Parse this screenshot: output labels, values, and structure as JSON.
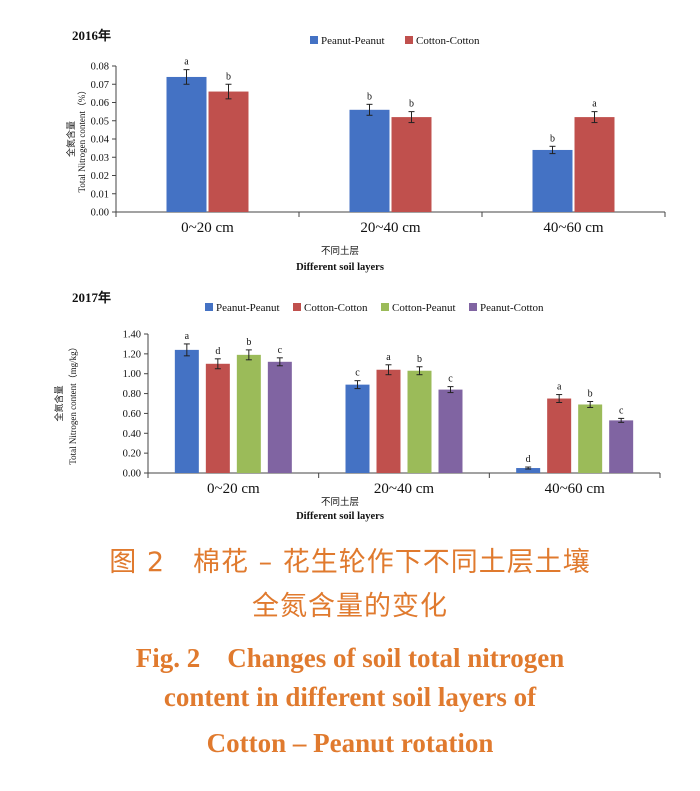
{
  "chart_data": [
    {
      "type": "bar",
      "panel_label": "2016年",
      "categories": [
        "0~20 cm",
        "20~40 cm",
        "40~60 cm"
      ],
      "series": [
        {
          "name": "Peanut-Peanut",
          "color": "#4472C4",
          "values": [
            0.074,
            0.056,
            0.034
          ],
          "errors": [
            0.004,
            0.003,
            0.002
          ],
          "letters": [
            "a",
            "b",
            "b"
          ]
        },
        {
          "name": "Cotton-Cotton",
          "color": "#C0504D",
          "values": [
            0.066,
            0.052,
            0.052
          ],
          "errors": [
            0.004,
            0.003,
            0.003
          ],
          "letters": [
            "b",
            "b",
            "a"
          ]
        }
      ],
      "ylabel_cn": "全氮含量",
      "ylabel_en": "Total Nitrogen content（%）",
      "xlabel_cn": "不同土层",
      "xlabel_en": "Different soil layers",
      "ylim": [
        0,
        0.08
      ],
      "yticks": [
        "0.00",
        "0.01",
        "0.02",
        "0.03",
        "0.04",
        "0.05",
        "0.06",
        "0.07",
        "0.08"
      ],
      "legend_position": "top",
      "grid": false
    },
    {
      "type": "bar",
      "panel_label": "2017年",
      "categories": [
        "0~20 cm",
        "20~40 cm",
        "40~60 cm"
      ],
      "series": [
        {
          "name": "Peanut-Peanut",
          "color": "#4472C4",
          "values": [
            1.24,
            0.89,
            0.05
          ],
          "errors": [
            0.06,
            0.04,
            0.01
          ],
          "letters": [
            "a",
            "c",
            "d"
          ]
        },
        {
          "name": "Cotton-Cotton",
          "color": "#C0504D",
          "values": [
            1.1,
            1.04,
            0.75
          ],
          "errors": [
            0.05,
            0.05,
            0.04
          ],
          "letters": [
            "d",
            "a",
            "a"
          ]
        },
        {
          "name": "Cotton-Peanut",
          "color": "#9BBB59",
          "values": [
            1.19,
            1.03,
            0.69
          ],
          "errors": [
            0.05,
            0.04,
            0.03
          ],
          "letters": [
            "b",
            "b",
            "b"
          ]
        },
        {
          "name": "Peanut-Cotton",
          "color": "#8064A2",
          "values": [
            1.12,
            0.84,
            0.53
          ],
          "errors": [
            0.04,
            0.03,
            0.02
          ],
          "letters": [
            "c",
            "c",
            "c"
          ]
        }
      ],
      "ylabel_cn": "全氮含量",
      "ylabel_en": "Total Nitrogen content（mg/kg）",
      "xlabel_cn": "不同土层",
      "xlabel_en": "Different soil layers",
      "ylim": [
        0,
        1.4
      ],
      "yticks": [
        "0.00",
        "0.20",
        "0.40",
        "0.60",
        "0.80",
        "1.00",
        "1.20",
        "1.40"
      ],
      "legend_position": "top",
      "grid": false
    }
  ],
  "caption": {
    "cn_line1": "图 2　棉花 – 花生轮作下不同土层土壤",
    "cn_line2": "全氮含量的变化",
    "en_line1": "Fig. 2　Changes of soil total nitrogen",
    "en_line2": "content in different soil layers of",
    "en_line3": "Cotton – Peanut rotation"
  }
}
